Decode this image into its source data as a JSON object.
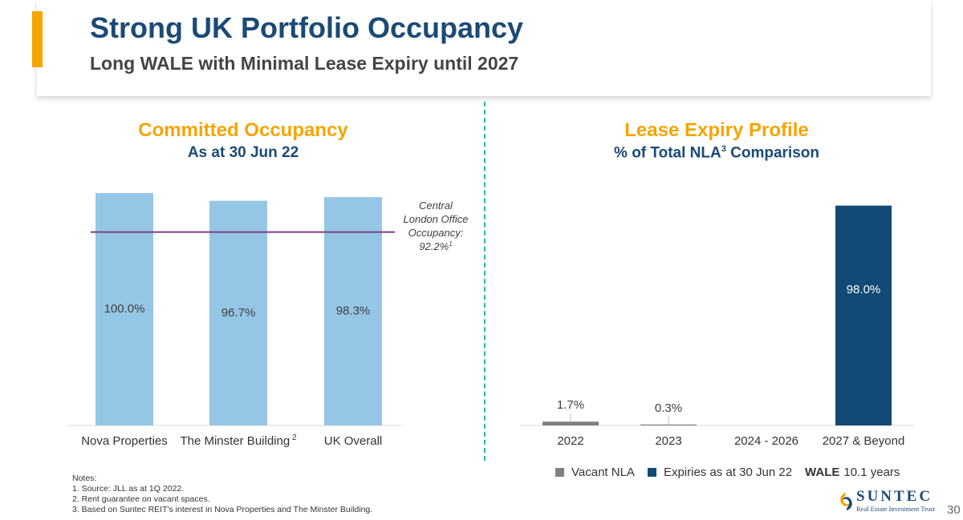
{
  "header": {
    "title": "Strong UK Portfolio Occupancy",
    "subtitle": "Long WALE with Minimal Lease Expiry until 2027"
  },
  "left_panel": {
    "title": "Committed Occupancy",
    "subtitle": "As at 30 Jun 22",
    "reference_line": {
      "label_lines": [
        "Central",
        "London Office",
        "Occupancy:",
        "92.2%"
      ],
      "footnote": "1",
      "value": 92.2
    }
  },
  "right_panel": {
    "title": "Lease Expiry Profile",
    "subtitle_pre": "% of Total NLA",
    "subtitle_sup": "3",
    "subtitle_post": " Comparison"
  },
  "chart_data": [
    {
      "type": "bar",
      "title": "Committed Occupancy",
      "subtitle": "As at 30 Jun 22",
      "categories": [
        "Nova Properties",
        "The Minster Building",
        "UK Overall"
      ],
      "category_footnotes": [
        "",
        "2",
        ""
      ],
      "series": [
        {
          "values": [
            100.0,
            96.7,
            98.3
          ],
          "labels": [
            "100.0%",
            "96.7%",
            "98.3%"
          ],
          "color": "#95c6e6"
        }
      ],
      "reference_line": {
        "value": 92.2,
        "color": "#7b3f87"
      },
      "ylim": [
        0,
        100
      ],
      "xlabel": "",
      "ylabel": "",
      "grid": false
    },
    {
      "type": "bar",
      "title": "Lease Expiry Profile",
      "categories": [
        "2022",
        "2023",
        "2024 - 2026",
        "2027 & Beyond"
      ],
      "series": [
        {
          "name": "Vacant NLA",
          "values": [
            1.7,
            0.3,
            0,
            0
          ],
          "labels": [
            "1.7%",
            "0.3%",
            "",
            ""
          ],
          "color": "#7f7f7f"
        },
        {
          "name": "Expiries as at 30 Jun 22",
          "values": [
            0,
            0,
            0,
            98.0
          ],
          "labels": [
            "",
            "",
            "",
            "98.0%"
          ],
          "color": "#114a74"
        }
      ],
      "ylim": [
        0,
        100
      ],
      "legend_position": "bottom",
      "xlabel": "",
      "ylabel": "",
      "grid": false
    }
  ],
  "legend": {
    "items": [
      {
        "label": "Vacant NLA",
        "color": "#7f7f7f"
      },
      {
        "label": "Expiries as at 30 Jun 22",
        "color": "#114a74"
      }
    ],
    "wale_label": "WALE",
    "wale_value": "10.1 years"
  },
  "notes": {
    "heading": "Notes:",
    "items": [
      "1.  Source: JLL as at 1Q 2022.",
      "2.  Rent guarantee on vacant spaces.",
      "3.  Based on Suntec REIT's interest in Nova Properties and The Minster Building."
    ]
  },
  "logo": {
    "word": "SUNTEC",
    "tagline": "Real Estate Investment Trust"
  },
  "page_number": "30",
  "colors": {
    "accent": "#f5a500",
    "brand_blue": "#1b4a76",
    "divider": "#26b5ad"
  }
}
